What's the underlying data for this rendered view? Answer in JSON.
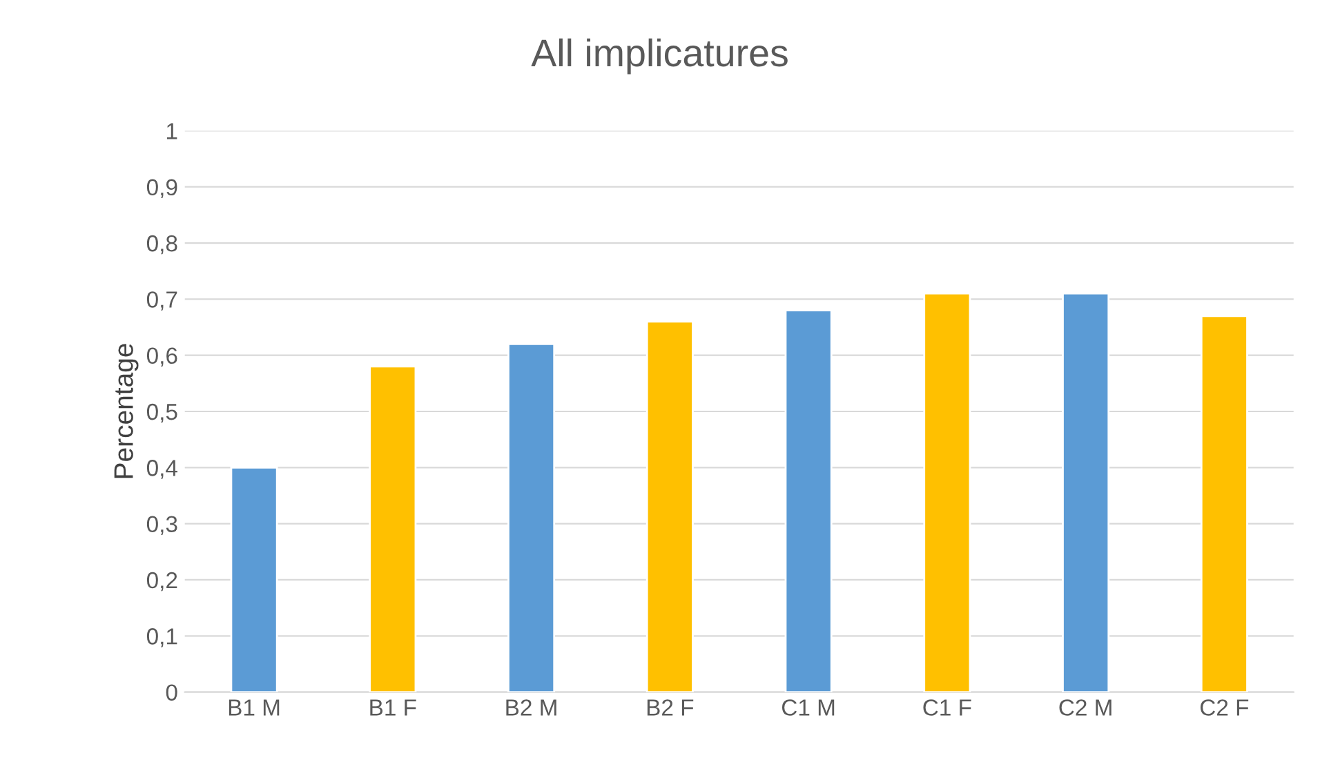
{
  "chart_data": {
    "type": "bar",
    "title": "All implicatures",
    "ylabel": "Percentage",
    "categories": [
      "B1 M",
      "B1 F",
      "B2 M",
      "B2 F",
      "C1 M",
      "C1 F",
      "C2 M",
      "C2 F"
    ],
    "values": [
      0.4,
      0.58,
      0.62,
      0.66,
      0.68,
      0.71,
      0.71,
      0.67
    ],
    "colors": [
      "#5b9bd5",
      "#ffc000",
      "#5b9bd5",
      "#ffc000",
      "#5b9bd5",
      "#ffc000",
      "#5b9bd5",
      "#ffc000"
    ],
    "ylim": [
      0,
      1
    ],
    "yticks": [
      0,
      {
        "value": 0.1,
        "label": "0,1"
      },
      {
        "value": 0.2,
        "label": "0,2"
      },
      {
        "value": 0.3,
        "label": "0,3"
      },
      {
        "value": 0.4,
        "label": "0,4"
      },
      {
        "value": 0.5,
        "label": "0,5"
      },
      {
        "value": 0.6,
        "label": "0,6"
      },
      {
        "value": 0.7,
        "label": "0,7"
      },
      {
        "value": 0.8,
        "label": "0,8"
      },
      {
        "value": 0.9,
        "label": "0,9"
      },
      1
    ],
    "grid": "y"
  }
}
